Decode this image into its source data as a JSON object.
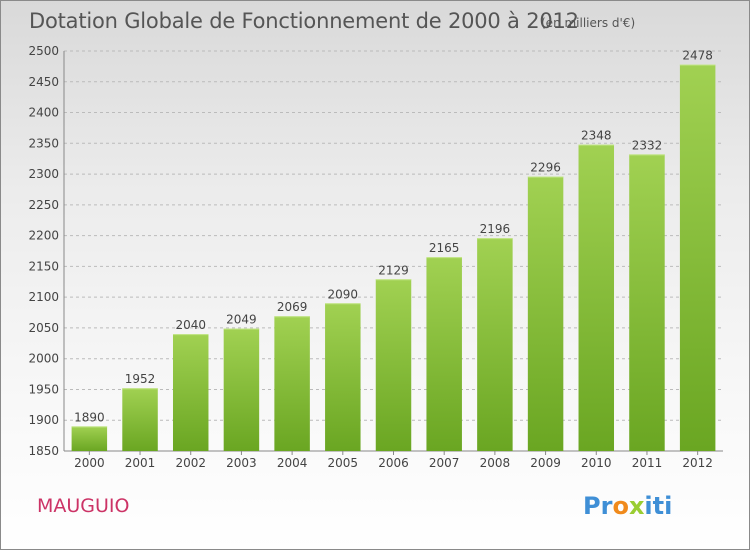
{
  "title": "Dotation Globale de Fonctionnement de 2000 à 2012",
  "unit_note": "(en milliers d'€)",
  "commune": "MAUGUIO",
  "logo": {
    "letters": [
      "P",
      "r",
      "o",
      "x",
      "i",
      "t",
      "i"
    ],
    "colors": [
      "#3f8fd6",
      "#3f8fd6",
      "#f08a1c",
      "#9acd32",
      "#3f8fd6",
      "#3f8fd6",
      "#3f8fd6"
    ]
  },
  "colors": {
    "bar_top": "#a1d152",
    "bar_bottom": "#6aa622",
    "grid": "#bbbbbb"
  },
  "chart_data": {
    "type": "bar",
    "categories": [
      "2000",
      "2001",
      "2002",
      "2003",
      "2004",
      "2005",
      "2006",
      "2007",
      "2008",
      "2009",
      "2010",
      "2011",
      "2012"
    ],
    "values": [
      1890,
      1952,
      2040,
      2049,
      2069,
      2090,
      2129,
      2165,
      2196,
      2296,
      2348,
      2332,
      2478
    ],
    "title": "Dotation Globale de Fonctionnement de 2000 à 2012",
    "ylim": [
      1850,
      2500
    ],
    "yticks": [
      1850,
      1900,
      1950,
      2000,
      2050,
      2100,
      2150,
      2200,
      2250,
      2300,
      2350,
      2400,
      2450,
      2500
    ],
    "grid": true,
    "data_labels": true
  }
}
